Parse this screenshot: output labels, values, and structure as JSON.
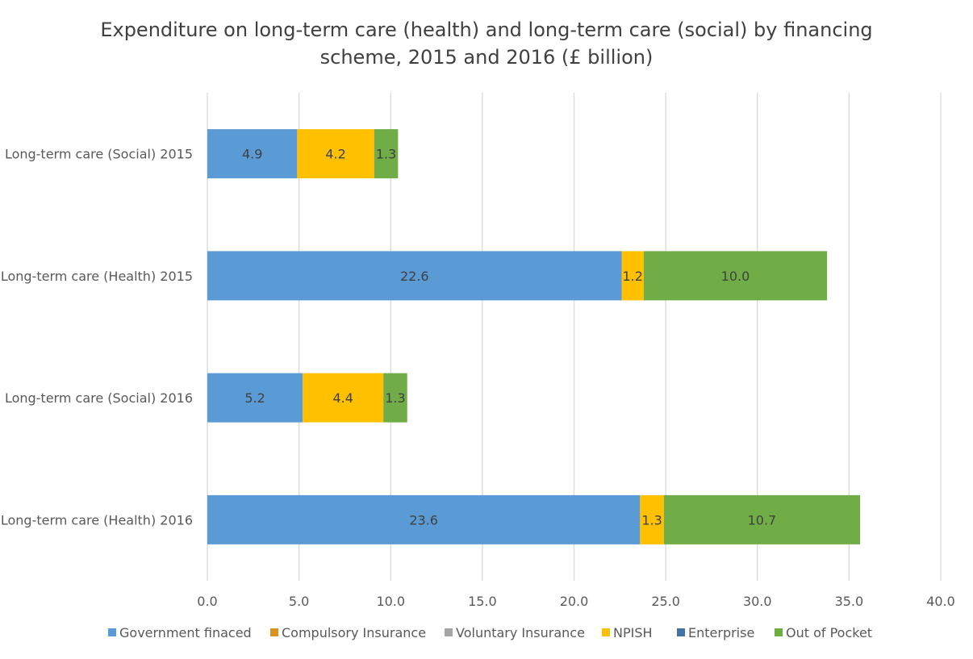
{
  "chart_data": {
    "type": "bar",
    "orientation": "horizontal",
    "stacked": true,
    "title": "Expenditure on long-term care (health) and long-term care (social) by financing scheme, 2015 and 2016 (£ billion)",
    "title_lines": [
      "Expenditure on long-term care (health) and long-term care (social) by financing",
      "scheme, 2015 and 2016 (£ billion)"
    ],
    "categories": [
      "Long-term care (Social) 2015",
      "Long-term care (Health) 2015",
      "Long-term care (Social) 2016",
      "Long-term care (Health) 2016"
    ],
    "series": [
      {
        "name": "Government finaced",
        "color": "#5B9BD5",
        "values": [
          4.9,
          22.6,
          5.2,
          23.6
        ],
        "labels": [
          "4.9",
          "22.6",
          "5.2",
          "23.6"
        ]
      },
      {
        "name": "Compulsory Insurance",
        "color": "#D8921F",
        "values": [
          0,
          0,
          0,
          0
        ]
      },
      {
        "name": "Voluntary Insurance",
        "color": "#A5A5A5",
        "values": [
          0,
          0,
          0,
          0
        ]
      },
      {
        "name": "NPISH",
        "color": "#FFC000",
        "values": [
          4.2,
          1.2,
          4.4,
          1.3
        ],
        "labels": [
          "4.2",
          "1.2",
          "4.4",
          "1.3"
        ]
      },
      {
        "name": "Enterprise",
        "color": "#4472A8",
        "values": [
          0,
          0,
          0,
          0
        ]
      },
      {
        "name": "Out of Pocket",
        "color": "#70AD47",
        "values": [
          1.3,
          10.0,
          1.3,
          10.7
        ],
        "labels": [
          "1.3",
          "10.0",
          "1.3",
          "10.7"
        ]
      }
    ],
    "xlim": [
      0,
      40
    ],
    "xticks": [
      "0.0",
      "5.0",
      "10.0",
      "15.0",
      "20.0",
      "25.0",
      "30.0",
      "35.0",
      "40.0"
    ],
    "xlabel": "",
    "ylabel": "",
    "grid": "vertical",
    "legend_position": "bottom"
  }
}
